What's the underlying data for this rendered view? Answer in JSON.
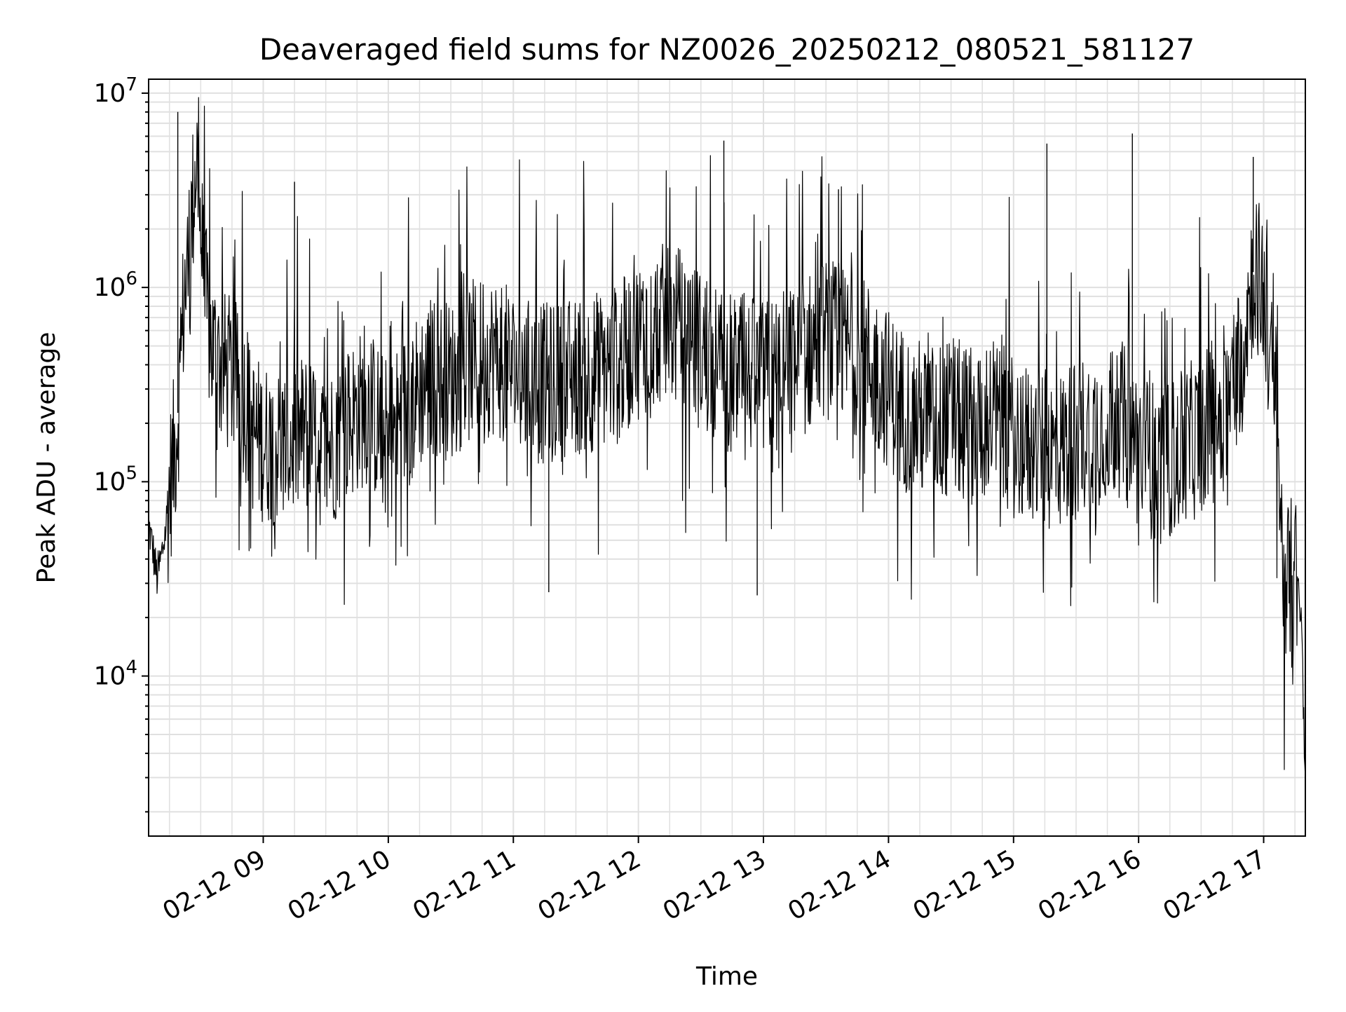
{
  "chart_data": {
    "type": "line",
    "title": "Deaveraged field sums for NZ0026_20250212_080521_581127",
    "xlabel": "Time",
    "ylabel": "Peak ADU - average",
    "yscale": "log",
    "ylim": [
      1500,
      11800000
    ],
    "xlim": [
      "2025-02-12 08:05",
      "2025-02-12 17:20"
    ],
    "grid": "major and minor, both axes",
    "line_color": "#000000",
    "grid_color": "#e0e0e0",
    "y_ticks": [
      {
        "value": 10000,
        "base": "10",
        "exp": "4"
      },
      {
        "value": 100000,
        "base": "10",
        "exp": "5"
      },
      {
        "value": 1000000,
        "base": "10",
        "exp": "6"
      },
      {
        "value": 10000000,
        "base": "10",
        "exp": "7"
      }
    ],
    "x_ticks": [
      {
        "value": "2025-02-12 09:00",
        "label": "02-12 09"
      },
      {
        "value": "2025-02-12 10:00",
        "label": "02-12 10"
      },
      {
        "value": "2025-02-12 11:00",
        "label": "02-12 11"
      },
      {
        "value": "2025-02-12 12:00",
        "label": "02-12 12"
      },
      {
        "value": "2025-02-12 13:00",
        "label": "02-12 13"
      },
      {
        "value": "2025-02-12 14:00",
        "label": "02-12 14"
      },
      {
        "value": "2025-02-12 15:00",
        "label": "02-12 15"
      },
      {
        "value": "2025-02-12 16:00",
        "label": "02-12 16"
      },
      {
        "value": "2025-02-12 17:00",
        "label": "02-12 17"
      }
    ],
    "series": [
      {
        "values_description_free": true,
        "x": [
          "2025-02-12 08:05",
          "2025-02-12 08:07",
          "2025-02-12 08:09",
          "2025-02-12 08:11",
          "2025-02-12 08:13",
          "2025-02-12 08:15",
          "2025-02-12 08:18",
          "2025-02-12 08:20",
          "2025-02-12 08:22",
          "2025-02-12 08:24",
          "2025-02-12 08:26",
          "2025-02-12 08:28",
          "2025-02-12 08:30",
          "2025-02-12 08:32",
          "2025-02-12 08:35",
          "2025-02-12 08:37",
          "2025-02-12 08:40",
          "2025-02-12 08:45",
          "2025-02-12 08:50",
          "2025-02-12 08:55",
          "2025-02-12 09:00",
          "2025-02-12 09:10",
          "2025-02-12 09:20",
          "2025-02-12 09:30",
          "2025-02-12 09:40",
          "2025-02-12 09:50",
          "2025-02-12 10:00",
          "2025-02-12 10:10",
          "2025-02-12 10:20",
          "2025-02-12 10:30",
          "2025-02-12 10:40",
          "2025-02-12 10:50",
          "2025-02-12 11:00",
          "2025-02-12 11:10",
          "2025-02-12 11:20",
          "2025-02-12 11:30",
          "2025-02-12 11:40",
          "2025-02-12 11:50",
          "2025-02-12 12:00",
          "2025-02-12 12:10",
          "2025-02-12 12:20",
          "2025-02-12 12:30",
          "2025-02-12 12:40",
          "2025-02-12 12:50",
          "2025-02-12 13:00",
          "2025-02-12 13:10",
          "2025-02-12 13:20",
          "2025-02-12 13:30",
          "2025-02-12 13:40",
          "2025-02-12 13:50",
          "2025-02-12 14:00",
          "2025-02-12 14:10",
          "2025-02-12 14:20",
          "2025-02-12 14:30",
          "2025-02-12 14:40",
          "2025-02-12 14:50",
          "2025-02-12 15:00",
          "2025-02-12 15:10",
          "2025-02-12 15:20",
          "2025-02-12 15:30",
          "2025-02-12 15:40",
          "2025-02-12 15:50",
          "2025-02-12 16:00",
          "2025-02-12 16:10",
          "2025-02-12 16:20",
          "2025-02-12 16:30",
          "2025-02-12 16:40",
          "2025-02-12 16:45",
          "2025-02-12 16:50",
          "2025-02-12 16:55",
          "2025-02-12 17:00",
          "2025-02-12 17:03",
          "2025-02-12 17:06",
          "2025-02-12 17:09",
          "2025-02-12 17:12",
          "2025-02-12 17:15",
          "2025-02-12 17:18",
          "2025-02-12 17:20"
        ],
        "y": [
          60000,
          45000,
          32000,
          40000,
          55000,
          90000,
          160000,
          320000,
          900000,
          1300000,
          2500000,
          5000000,
          2000000,
          900000,
          500000,
          450000,
          380000,
          350000,
          300000,
          180000,
          160000,
          150000,
          180000,
          140000,
          200000,
          250000,
          160000,
          250000,
          350000,
          330000,
          420000,
          450000,
          380000,
          320000,
          320000,
          350000,
          370000,
          400000,
          550000,
          650000,
          620000,
          470000,
          380000,
          360000,
          330000,
          380000,
          450000,
          550000,
          480000,
          420000,
          300000,
          220000,
          200000,
          210000,
          200000,
          220000,
          170000,
          150000,
          140000,
          170000,
          190000,
          220000,
          150000,
          120000,
          140000,
          180000,
          220000,
          300000,
          550000,
          1200000,
          1000000,
          400000,
          250000,
          40000,
          30000,
          35000,
          20000,
          3000
        ],
        "line_comment_free": true
      }
    ]
  }
}
